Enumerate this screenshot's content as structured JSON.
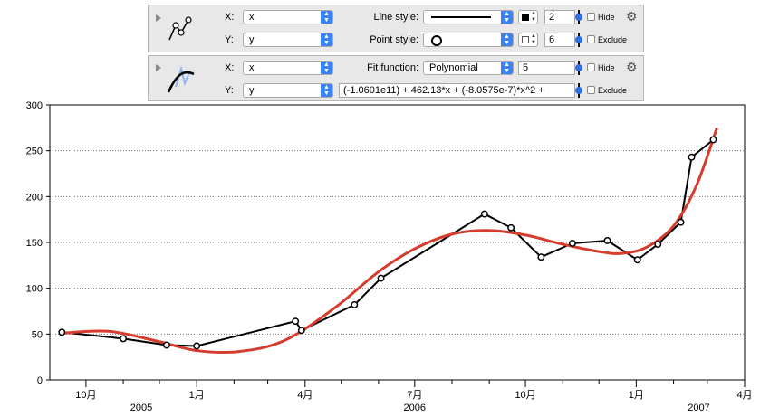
{
  "layer1": {
    "x_label": "X:",
    "x_value": "x",
    "y_label": "Y:",
    "y_value": "y",
    "line_style_label": "Line style:",
    "line_width": "2",
    "point_style_label": "Point style:",
    "point_size": "6",
    "hide_label": "Hide",
    "exclude_label": "Exclude"
  },
  "layer2": {
    "x_label": "X:",
    "x_value": "x",
    "y_label": "Y:",
    "y_value": "y",
    "fit_function_label": "Fit function:",
    "fit_function_value": "Polynomial",
    "degree": "5",
    "formula": "(-1.0601e11) + 462.13*x + (-8.0575e-7)*x^2 + ",
    "hide_label": "Hide",
    "exclude_label": "Exclude"
  },
  "colors": {
    "data_line": "#000000",
    "fit_line": "#d63c2e",
    "accent": "#3b82f6"
  },
  "chart_data": {
    "type": "line",
    "ylim": [
      0,
      300
    ],
    "yticks": [
      0,
      50,
      100,
      150,
      200,
      250,
      300
    ],
    "ytick_labels": [
      "0",
      "50",
      "100",
      "150",
      "200",
      "250",
      "300"
    ],
    "xlim": [
      "2005-09-01",
      "2007-04-01"
    ],
    "xticks": [
      "2005-10-01",
      "2006-01-01",
      "2006-04-01",
      "2006-07-01",
      "2006-10-01",
      "2007-01-01",
      "2007-04-01"
    ],
    "xtick_labels": [
      "10月",
      "1月",
      "4月",
      "7月",
      "10月",
      "1月",
      "4月"
    ],
    "minor_xticks": [
      "2005-11-01",
      "2005-12-01",
      "2006-02-01",
      "2006-03-01",
      "2006-05-01",
      "2006-06-01",
      "2006-08-01",
      "2006-09-01",
      "2006-11-01",
      "2006-12-01",
      "2007-02-01",
      "2007-03-01"
    ],
    "year_labels": [
      {
        "text": "2005",
        "date": "2005-11-16"
      },
      {
        "text": "2006",
        "date": "2006-07-01"
      },
      {
        "text": "2007",
        "date": "2007-02-22"
      }
    ],
    "grid": "horizontal-dotted",
    "series": [
      {
        "style": "line-with-open-circles",
        "x": [
          "2005-09-11",
          "2005-11-01",
          "2005-12-07",
          "2006-01-01",
          "2006-03-24",
          "2006-03-29",
          "2006-05-12",
          "2006-06-03",
          "2006-08-28",
          "2006-09-19",
          "2006-10-14",
          "2006-11-09",
          "2006-12-08",
          "2007-01-02",
          "2007-01-19",
          "2007-02-07",
          "2007-02-16",
          "2007-03-06"
        ],
        "y": [
          52,
          45,
          38,
          37,
          64,
          54,
          82,
          111,
          181,
          166,
          134,
          149,
          152,
          131,
          148,
          172,
          243,
          262
        ]
      },
      {
        "style": "fit-curve",
        "x": [
          "2005-09-11",
          "2005-10-20",
          "2005-11-30",
          "2006-01-01",
          "2006-02-05",
          "2006-03-15",
          "2006-04-25",
          "2006-06-01",
          "2006-07-01",
          "2006-08-01",
          "2006-09-01",
          "2006-10-01",
          "2006-11-01",
          "2006-12-01",
          "2006-12-20",
          "2007-01-10",
          "2007-02-01",
          "2007-02-20",
          "2007-03-09"
        ],
        "y": [
          51,
          53,
          42,
          32,
          31,
          43,
          78,
          118,
          143,
          159,
          163,
          158,
          148,
          140,
          138,
          145,
          168,
          212,
          275
        ]
      }
    ]
  }
}
